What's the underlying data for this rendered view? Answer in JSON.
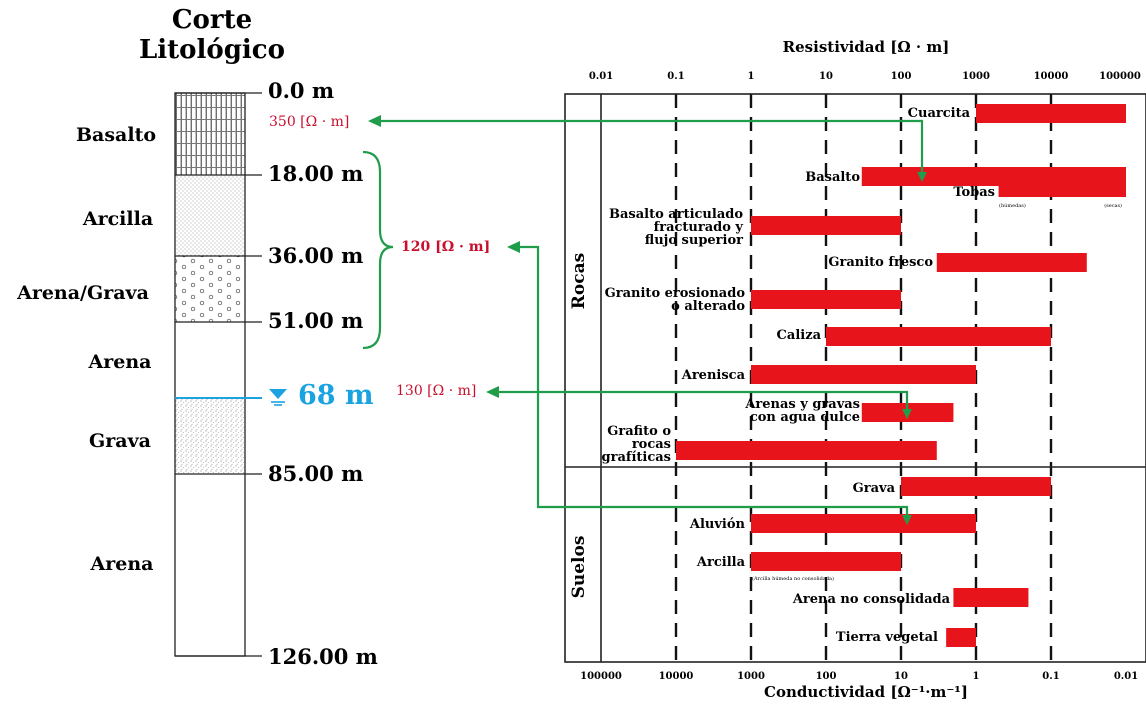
{
  "column": {
    "title_line1": "Corte",
    "title_line2": "Litológico",
    "layers": [
      {
        "name": "Basalto",
        "top": 0,
        "bottom": 18
      },
      {
        "name": "Arcilla",
        "top": 18,
        "bottom": 36
      },
      {
        "name": "Arena/Grava",
        "top": 36,
        "bottom": 51
      },
      {
        "name": "Arena",
        "top": 51,
        "bottom": 68
      },
      {
        "name": "Grava",
        "top": 68,
        "bottom": 85
      },
      {
        "name": "Arena",
        "top": 85,
        "bottom": 126
      }
    ],
    "depth_labels": [
      "0.0 m",
      "18.00 m",
      "36.00 m",
      "51.00 m",
      "85.00 m",
      "126.00 m"
    ],
    "water_level_label": "68 m",
    "water_color": "#1aa3e0",
    "annotations": [
      "350 [Ω · m]",
      "120 [Ω · m]",
      "130 [Ω · m]"
    ]
  },
  "chart_data": {
    "type": "range-bar",
    "title": "Resistividad [Ω · m]",
    "xlabel_bottom": "Conductividad [Ω⁻¹·m⁻¹]",
    "scale": "log",
    "xlim": [
      0.01,
      100000
    ],
    "top_ticks": [
      "0.01",
      "0.1",
      "1",
      "10",
      "100",
      "1000",
      "10000",
      "100000"
    ],
    "bottom_ticks": [
      "100000",
      "10000",
      "1000",
      "100",
      "10",
      "1",
      "0.1",
      "0.01"
    ],
    "groups": [
      {
        "name": "Rocas",
        "rows": [
          {
            "label": "Cuarcita",
            "min": 1000,
            "max": 100000
          },
          {
            "label": "Basalto",
            "min": 30,
            "max": 100000
          },
          {
            "label": "Tobas",
            "min": 2000,
            "max": 100000,
            "note_left": "(húmedas)",
            "note_right": "(secas)"
          },
          {
            "label": "Basalto articulado fracturado y flujo superior",
            "min": 1,
            "max": 100
          },
          {
            "label": "Granito fresco",
            "min": 300,
            "max": 30000
          },
          {
            "label": "Granito erosionado o alterado",
            "min": 1,
            "max": 100
          },
          {
            "label": "Caliza",
            "min": 10,
            "max": 10000
          },
          {
            "label": "Arenisca",
            "min": 1,
            "max": 1000
          },
          {
            "label": "Arenas y gravas con agua dulce",
            "min": 30,
            "max": 500
          },
          {
            "label": "Grafito o rocas grafíticas",
            "min": 0.1,
            "max": 300
          }
        ]
      },
      {
        "name": "Suelos",
        "rows": [
          {
            "label": "Grava",
            "min": 100,
            "max": 10000
          },
          {
            "label": "Aluvión",
            "min": 1,
            "max": 1000
          },
          {
            "label": "Arcilla",
            "min": 1,
            "max": 100,
            "note_left": "(Arcilla húmeda no consolidada)"
          },
          {
            "label": "Arena no consolidada",
            "min": 500,
            "max": 5000
          },
          {
            "label": "Tierra vegetal",
            "min": 400,
            "max": 1000
          }
        ]
      }
    ],
    "bar_color": "#e8141c",
    "arrow_color": "#1f9d4a",
    "annotation_color": "#c8102e"
  }
}
